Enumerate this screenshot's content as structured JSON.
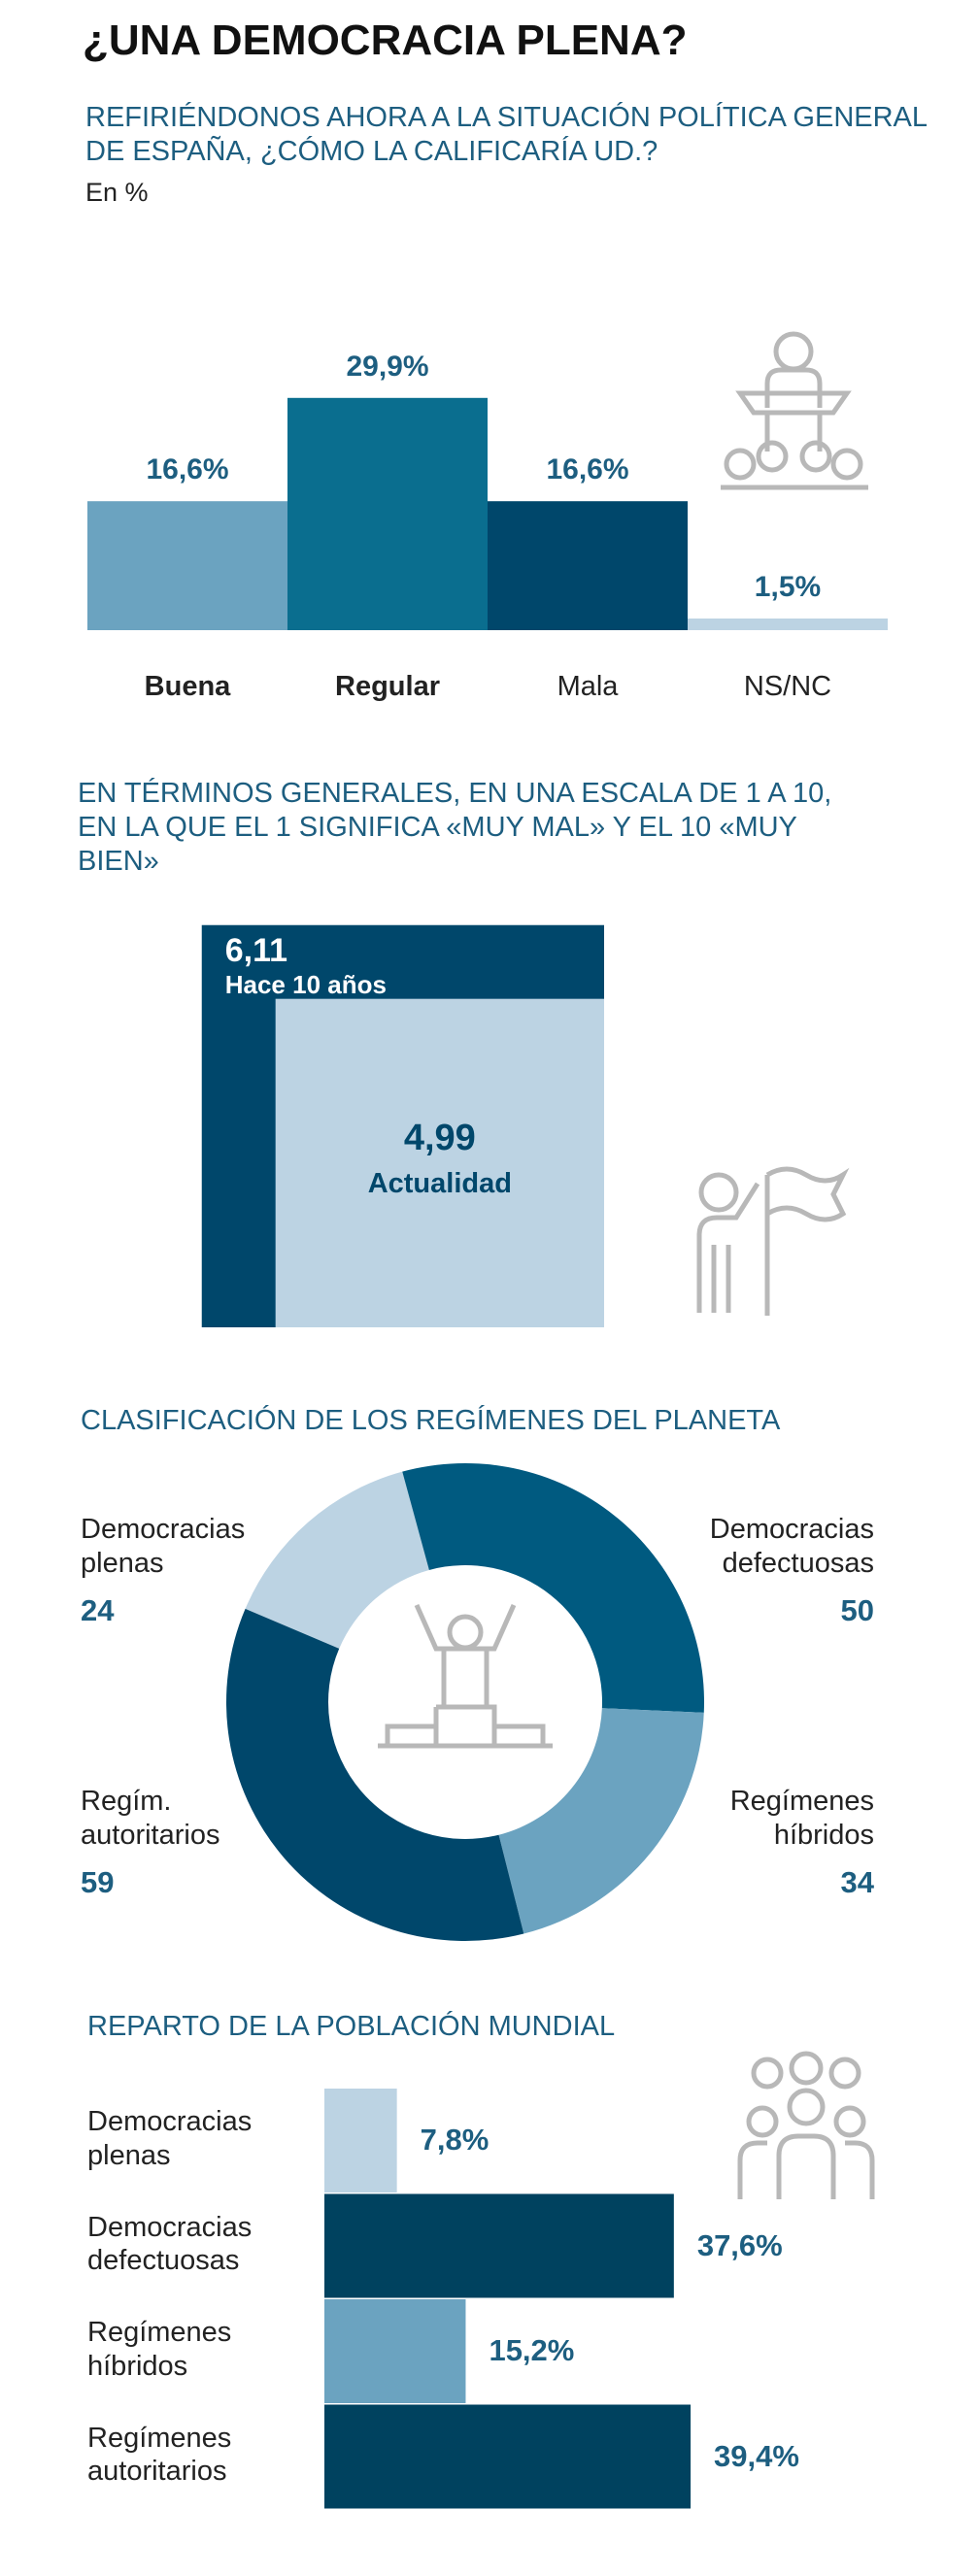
{
  "title": "¿UNA DEMOCRACIA PLENA?",
  "chart_data": [
    {
      "type": "bar",
      "title": "REFIRIÉNDONOS AHORA A LA SITUACIÓN POLÍTICA GENERAL DE ESPAÑA, ¿CÓMO LA CALIFICARÍA UD.?",
      "subtitle": "En %",
      "categories": [
        "Buena",
        "Regular",
        "Mala",
        "NS/NC"
      ],
      "values": [
        16.6,
        29.9,
        16.6,
        1.5
      ],
      "value_labels": [
        "16,6%",
        "29,9%",
        "16,6%",
        "1,5%"
      ],
      "colors": [
        "#6ba3c0",
        "#0a6e8f",
        "#00476b",
        "#bcd3e3"
      ]
    },
    {
      "type": "square",
      "title": "EN TÉRMINOS GENERALES, EN UNA ESCALA DE 1 A 10, EN LA QUE EL 1 SIGNIFICA «MUY MAL» Y EL 10 «MUY BIEN»",
      "categories": [
        "Hace 10 años",
        "Actualidad"
      ],
      "values": [
        6.11,
        4.99
      ],
      "value_labels": [
        "6,11",
        "4,99"
      ],
      "colors": [
        "#00476b",
        "#bcd3e3"
      ]
    },
    {
      "type": "donut",
      "title": "CLASIFICACIÓN DE LOS REGÍMENES DEL PLANETA",
      "categories": [
        "Democracias plenas",
        "Democracias defectuosas",
        "Regímenes híbridos",
        "Regím. autoritarios"
      ],
      "values": [
        24,
        50,
        34,
        59
      ],
      "colors": [
        "#bcd3e3",
        "#005a80",
        "#6ba3c0",
        "#00476b"
      ]
    },
    {
      "type": "hbar",
      "title": "REPARTO DE LA POBLACIÓN MUNDIAL",
      "categories": [
        "Democracias plenas",
        "Democracias defectuosas",
        "Regímenes híbridos",
        "Regímenes autoritarios"
      ],
      "values": [
        7.8,
        37.6,
        15.2,
        39.4
      ],
      "value_labels": [
        "7,8%",
        "37,6%",
        "15,2%",
        "39,4%"
      ],
      "colors": [
        "#bcd3e3",
        "#00425f",
        "#6ba3c0",
        "#00425f"
      ]
    }
  ]
}
